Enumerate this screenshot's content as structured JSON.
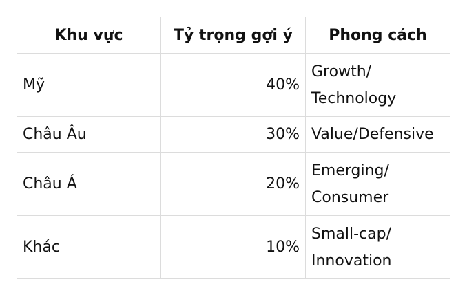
{
  "table": {
    "headers": [
      "Khu vực",
      "Tỷ trọng gợi ý",
      "Phong cách"
    ],
    "rows": [
      {
        "region": "Mỹ",
        "weight": "40%",
        "style_lines": [
          "Growth/",
          "Technology"
        ]
      },
      {
        "region": "Châu Âu",
        "weight": "30%",
        "style_lines": [
          "Value/Defensive"
        ]
      },
      {
        "region": "Châu Á",
        "weight": "20%",
        "style_lines": [
          "Emerging/",
          "Consumer"
        ]
      },
      {
        "region": "Khác",
        "weight": "10%",
        "style_lines": [
          "Small-cap/",
          "Innovation"
        ]
      }
    ]
  }
}
